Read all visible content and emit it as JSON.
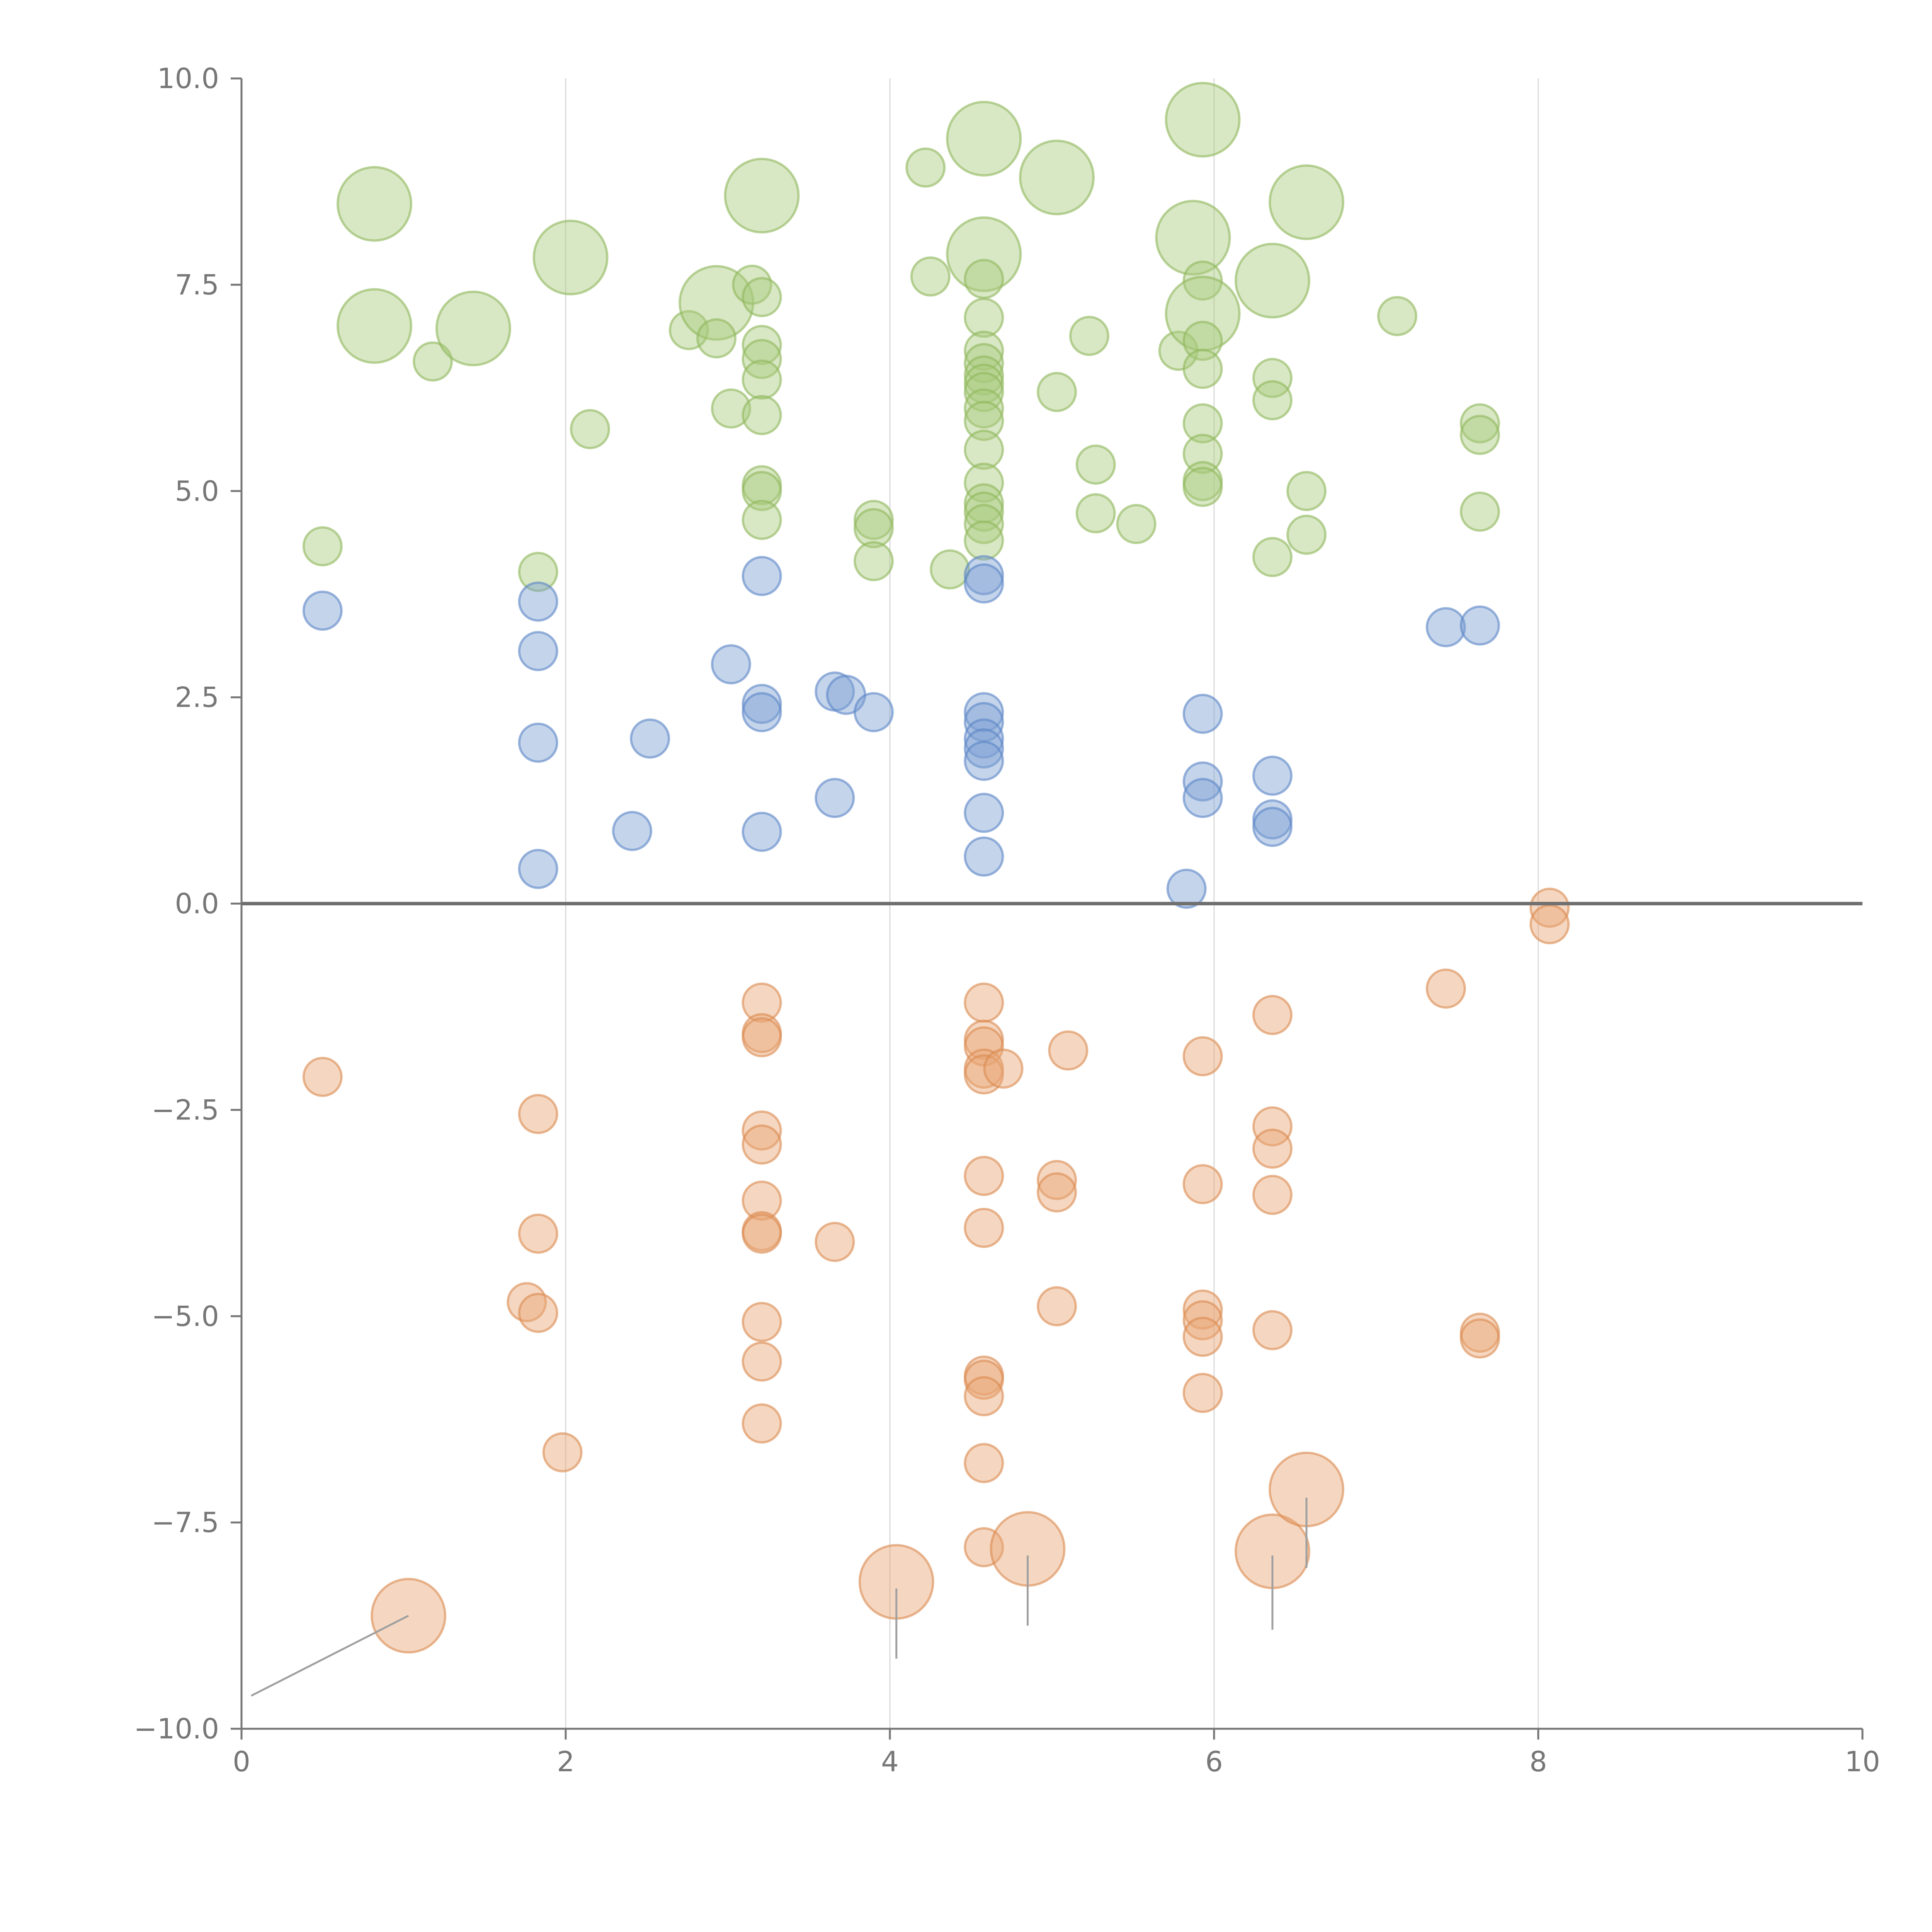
{
  "chart_data": {
    "type": "scatter",
    "title": "",
    "xlabel": "",
    "ylabel": "",
    "xlim": [
      0,
      10
    ],
    "ylim": [
      -10,
      10
    ],
    "x_ticks": [
      "0",
      "2",
      "4",
      "6",
      "8",
      "10"
    ],
    "y_ticks": [
      "−10.0",
      "−7.5",
      "−5.0",
      "−2.5",
      "0.0",
      "2.5",
      "5.0",
      "7.5",
      "10.0"
    ],
    "x_tick_values": [
      0,
      2,
      4,
      6,
      8,
      10
    ],
    "y_tick_values": [
      -10,
      -7.5,
      -5,
      -2.5,
      0,
      2.5,
      5,
      7.5,
      10
    ],
    "vertical_gridlines_at": [
      2,
      4,
      6,
      8
    ],
    "zero_line": 0,
    "colors": {
      "green": "#A9C97C",
      "blue": "#7C9FD3",
      "orange": "#E8A676",
      "axis": "#777777",
      "zero_line": "#707070",
      "grid": "#d9d9d9",
      "leader": "#a0a0a0"
    },
    "series": [
      {
        "name": "green",
        "color": "#A9C97C",
        "points": [
          {
            "x": 0.82,
            "y": 8.48,
            "s": 3
          },
          {
            "x": 0.82,
            "y": 7.0,
            "s": 3
          },
          {
            "x": 1.18,
            "y": 6.57,
            "s": 1
          },
          {
            "x": 1.43,
            "y": 6.97,
            "s": 3
          },
          {
            "x": 0.5,
            "y": 4.33,
            "s": 1
          },
          {
            "x": 1.83,
            "y": 4.02,
            "s": 1
          },
          {
            "x": 2.03,
            "y": 7.83,
            "s": 3
          },
          {
            "x": 2.15,
            "y": 5.75,
            "s": 1
          },
          {
            "x": 2.76,
            "y": 6.95,
            "s": 1
          },
          {
            "x": 2.93,
            "y": 7.28,
            "s": 3
          },
          {
            "x": 2.93,
            "y": 6.85,
            "s": 1
          },
          {
            "x": 3.02,
            "y": 6.0,
            "s": 1
          },
          {
            "x": 3.15,
            "y": 7.5,
            "s": 1
          },
          {
            "x": 3.21,
            "y": 8.58,
            "s": 3
          },
          {
            "x": 3.21,
            "y": 7.35,
            "s": 1
          },
          {
            "x": 3.21,
            "y": 6.77,
            "s": 1
          },
          {
            "x": 3.21,
            "y": 6.6,
            "s": 1
          },
          {
            "x": 3.21,
            "y": 6.35,
            "s": 1
          },
          {
            "x": 3.21,
            "y": 5.92,
            "s": 1
          },
          {
            "x": 3.21,
            "y": 5.07,
            "s": 1
          },
          {
            "x": 3.21,
            "y": 5.0,
            "s": 1
          },
          {
            "x": 3.21,
            "y": 4.65,
            "s": 1
          },
          {
            "x": 3.9,
            "y": 4.65,
            "s": 1
          },
          {
            "x": 3.9,
            "y": 4.55,
            "s": 1
          },
          {
            "x": 3.9,
            "y": 4.15,
            "s": 1
          },
          {
            "x": 4.22,
            "y": 8.92,
            "s": 1
          },
          {
            "x": 4.25,
            "y": 7.6,
            "s": 1
          },
          {
            "x": 4.37,
            "y": 4.05,
            "s": 1
          },
          {
            "x": 4.58,
            "y": 9.27,
            "s": 3
          },
          {
            "x": 4.58,
            "y": 7.87,
            "s": 3
          },
          {
            "x": 4.58,
            "y": 7.57,
            "s": 1
          },
          {
            "x": 4.58,
            "y": 7.1,
            "s": 1
          },
          {
            "x": 4.58,
            "y": 6.7,
            "s": 1
          },
          {
            "x": 4.58,
            "y": 6.55,
            "s": 1
          },
          {
            "x": 4.58,
            "y": 6.4,
            "s": 1
          },
          {
            "x": 4.58,
            "y": 6.3,
            "s": 1
          },
          {
            "x": 4.58,
            "y": 6.2,
            "s": 1
          },
          {
            "x": 4.58,
            "y": 6.0,
            "s": 1
          },
          {
            "x": 4.58,
            "y": 5.85,
            "s": 1
          },
          {
            "x": 4.58,
            "y": 5.5,
            "s": 1
          },
          {
            "x": 4.58,
            "y": 5.1,
            "s": 1
          },
          {
            "x": 4.58,
            "y": 4.85,
            "s": 1
          },
          {
            "x": 4.58,
            "y": 4.75,
            "s": 1
          },
          {
            "x": 4.58,
            "y": 4.6,
            "s": 1
          },
          {
            "x": 4.58,
            "y": 4.4,
            "s": 1
          },
          {
            "x": 5.03,
            "y": 8.8,
            "s": 3
          },
          {
            "x": 5.03,
            "y": 6.2,
            "s": 1
          },
          {
            "x": 5.23,
            "y": 6.88,
            "s": 1
          },
          {
            "x": 5.27,
            "y": 5.32,
            "s": 1
          },
          {
            "x": 5.27,
            "y": 4.73,
            "s": 1
          },
          {
            "x": 5.52,
            "y": 4.6,
            "s": 1
          },
          {
            "x": 5.78,
            "y": 6.7,
            "s": 1
          },
          {
            "x": 5.87,
            "y": 8.07,
            "s": 3
          },
          {
            "x": 5.93,
            "y": 9.5,
            "s": 3
          },
          {
            "x": 5.93,
            "y": 7.55,
            "s": 1
          },
          {
            "x": 5.93,
            "y": 7.15,
            "s": 3
          },
          {
            "x": 5.93,
            "y": 6.82,
            "s": 1
          },
          {
            "x": 5.93,
            "y": 6.48,
            "s": 1
          },
          {
            "x": 5.93,
            "y": 5.82,
            "s": 1
          },
          {
            "x": 5.93,
            "y": 5.45,
            "s": 1
          },
          {
            "x": 5.93,
            "y": 5.12,
            "s": 1
          },
          {
            "x": 5.93,
            "y": 5.05,
            "s": 1
          },
          {
            "x": 6.36,
            "y": 7.55,
            "s": 3
          },
          {
            "x": 6.36,
            "y": 6.37,
            "s": 1
          },
          {
            "x": 6.36,
            "y": 6.1,
            "s": 1
          },
          {
            "x": 6.36,
            "y": 4.2,
            "s": 1
          },
          {
            "x": 6.57,
            "y": 8.5,
            "s": 3
          },
          {
            "x": 6.57,
            "y": 5.0,
            "s": 1
          },
          {
            "x": 6.57,
            "y": 4.47,
            "s": 1
          },
          {
            "x": 7.13,
            "y": 7.12,
            "s": 1
          },
          {
            "x": 7.64,
            "y": 5.82,
            "s": 1
          },
          {
            "x": 7.64,
            "y": 5.68,
            "s": 1
          },
          {
            "x": 7.64,
            "y": 4.75,
            "s": 1
          }
        ]
      },
      {
        "name": "blue",
        "color": "#7C9FD3",
        "points": [
          {
            "x": 0.5,
            "y": 3.55,
            "s": 1
          },
          {
            "x": 1.83,
            "y": 3.66,
            "s": 1
          },
          {
            "x": 1.83,
            "y": 3.06,
            "s": 1
          },
          {
            "x": 1.83,
            "y": 1.95,
            "s": 1
          },
          {
            "x": 1.83,
            "y": 0.42,
            "s": 1
          },
          {
            "x": 2.41,
            "y": 0.88,
            "s": 1
          },
          {
            "x": 2.52,
            "y": 2.0,
            "s": 1
          },
          {
            "x": 3.02,
            "y": 2.9,
            "s": 1
          },
          {
            "x": 3.21,
            "y": 3.97,
            "s": 1
          },
          {
            "x": 3.21,
            "y": 2.42,
            "s": 1
          },
          {
            "x": 3.21,
            "y": 2.32,
            "s": 1
          },
          {
            "x": 3.21,
            "y": 0.87,
            "s": 1
          },
          {
            "x": 3.66,
            "y": 2.57,
            "s": 1
          },
          {
            "x": 3.73,
            "y": 2.53,
            "s": 1
          },
          {
            "x": 3.66,
            "y": 1.28,
            "s": 1
          },
          {
            "x": 3.9,
            "y": 2.32,
            "s": 1
          },
          {
            "x": 4.58,
            "y": 3.98,
            "s": 1
          },
          {
            "x": 4.58,
            "y": 3.88,
            "s": 1
          },
          {
            "x": 4.58,
            "y": 2.32,
            "s": 1
          },
          {
            "x": 4.58,
            "y": 2.2,
            "s": 1
          },
          {
            "x": 4.58,
            "y": 2.0,
            "s": 1
          },
          {
            "x": 4.58,
            "y": 1.88,
            "s": 1
          },
          {
            "x": 4.58,
            "y": 1.73,
            "s": 1
          },
          {
            "x": 4.58,
            "y": 1.1,
            "s": 1
          },
          {
            "x": 4.58,
            "y": 0.57,
            "s": 1
          },
          {
            "x": 5.83,
            "y": 0.18,
            "s": 1
          },
          {
            "x": 5.93,
            "y": 2.3,
            "s": 1
          },
          {
            "x": 5.93,
            "y": 1.48,
            "s": 1
          },
          {
            "x": 5.93,
            "y": 1.28,
            "s": 1
          },
          {
            "x": 6.36,
            "y": 1.55,
            "s": 1
          },
          {
            "x": 6.36,
            "y": 1.02,
            "s": 1
          },
          {
            "x": 6.36,
            "y": 0.93,
            "s": 1
          },
          {
            "x": 7.43,
            "y": 3.35,
            "s": 1
          },
          {
            "x": 7.64,
            "y": 3.37,
            "s": 1
          }
        ]
      },
      {
        "name": "orange",
        "color": "#E8A676",
        "points": [
          {
            "x": 0.5,
            "y": -2.1,
            "s": 1
          },
          {
            "x": 1.83,
            "y": -2.55,
            "s": 1
          },
          {
            "x": 1.83,
            "y": -4.0,
            "s": 1
          },
          {
            "x": 1.76,
            "y": -4.83,
            "s": 1
          },
          {
            "x": 1.83,
            "y": -4.96,
            "s": 1
          },
          {
            "x": 1.98,
            "y": -6.65,
            "s": 1
          },
          {
            "x": 1.03,
            "y": -8.63,
            "s": 3
          },
          {
            "x": 3.21,
            "y": -1.2,
            "s": 1
          },
          {
            "x": 3.21,
            "y": -1.57,
            "s": 1
          },
          {
            "x": 3.21,
            "y": -1.62,
            "s": 1
          },
          {
            "x": 3.21,
            "y": -2.75,
            "s": 1
          },
          {
            "x": 3.21,
            "y": -2.92,
            "s": 1
          },
          {
            "x": 3.21,
            "y": -3.6,
            "s": 1
          },
          {
            "x": 3.21,
            "y": -3.97,
            "s": 1
          },
          {
            "x": 3.21,
            "y": -4.0,
            "s": 1
          },
          {
            "x": 3.21,
            "y": -5.07,
            "s": 1
          },
          {
            "x": 3.21,
            "y": -5.55,
            "s": 1
          },
          {
            "x": 3.21,
            "y": -6.3,
            "s": 1
          },
          {
            "x": 3.66,
            "y": -4.1,
            "s": 1
          },
          {
            "x": 4.04,
            "y": -8.22,
            "s": 3
          },
          {
            "x": 4.58,
            "y": -1.2,
            "s": 1
          },
          {
            "x": 4.58,
            "y": -1.65,
            "s": 1
          },
          {
            "x": 4.58,
            "y": -1.73,
            "s": 1
          },
          {
            "x": 4.58,
            "y": -2.0,
            "s": 1
          },
          {
            "x": 4.58,
            "y": -2.07,
            "s": 1
          },
          {
            "x": 4.7,
            "y": -2.0,
            "s": 1
          },
          {
            "x": 4.58,
            "y": -3.3,
            "s": 1
          },
          {
            "x": 4.58,
            "y": -3.93,
            "s": 1
          },
          {
            "x": 4.58,
            "y": -5.72,
            "s": 1
          },
          {
            "x": 4.58,
            "y": -5.77,
            "s": 1
          },
          {
            "x": 4.58,
            "y": -5.97,
            "s": 1
          },
          {
            "x": 4.58,
            "y": -6.78,
            "s": 1
          },
          {
            "x": 4.58,
            "y": -7.8,
            "s": 1
          },
          {
            "x": 4.85,
            "y": -7.82,
            "s": 3
          },
          {
            "x": 5.03,
            "y": -3.35,
            "s": 1
          },
          {
            "x": 5.03,
            "y": -3.5,
            "s": 1
          },
          {
            "x": 5.03,
            "y": -4.88,
            "s": 1
          },
          {
            "x": 5.1,
            "y": -1.78,
            "s": 1
          },
          {
            "x": 5.93,
            "y": -1.85,
            "s": 1
          },
          {
            "x": 5.93,
            "y": -3.4,
            "s": 1
          },
          {
            "x": 5.93,
            "y": -4.92,
            "s": 1
          },
          {
            "x": 5.93,
            "y": -5.05,
            "s": 1
          },
          {
            "x": 5.93,
            "y": -5.25,
            "s": 1
          },
          {
            "x": 5.93,
            "y": -5.93,
            "s": 1
          },
          {
            "x": 6.36,
            "y": -1.35,
            "s": 1
          },
          {
            "x": 6.36,
            "y": -2.7,
            "s": 1
          },
          {
            "x": 6.36,
            "y": -2.97,
            "s": 1
          },
          {
            "x": 6.36,
            "y": -3.53,
            "s": 1
          },
          {
            "x": 6.36,
            "y": -5.17,
            "s": 1
          },
          {
            "x": 6.36,
            "y": -7.85,
            "s": 3
          },
          {
            "x": 6.57,
            "y": -7.1,
            "s": 3
          },
          {
            "x": 7.43,
            "y": -1.03,
            "s": 1
          },
          {
            "x": 7.64,
            "y": -5.2,
            "s": 1
          },
          {
            "x": 7.64,
            "y": -5.27,
            "s": 1
          },
          {
            "x": 8.07,
            "y": -0.05,
            "s": 1
          },
          {
            "x": 8.07,
            "y": -0.25,
            "s": 1
          }
        ]
      }
    ],
    "leader_lines": [
      {
        "x1": 1.03,
        "y1": -8.63,
        "x2": 0.06,
        "y2": -9.6
      },
      {
        "x1": 4.04,
        "y1": -8.3,
        "x2": 4.04,
        "y2": -9.15
      },
      {
        "x1": 4.85,
        "y1": -7.9,
        "x2": 4.85,
        "y2": -8.75
      },
      {
        "x1": 6.36,
        "y1": -7.9,
        "x2": 6.36,
        "y2": -8.8
      },
      {
        "x1": 6.57,
        "y1": -7.2,
        "x2": 6.57,
        "y2": -8.05
      }
    ]
  }
}
